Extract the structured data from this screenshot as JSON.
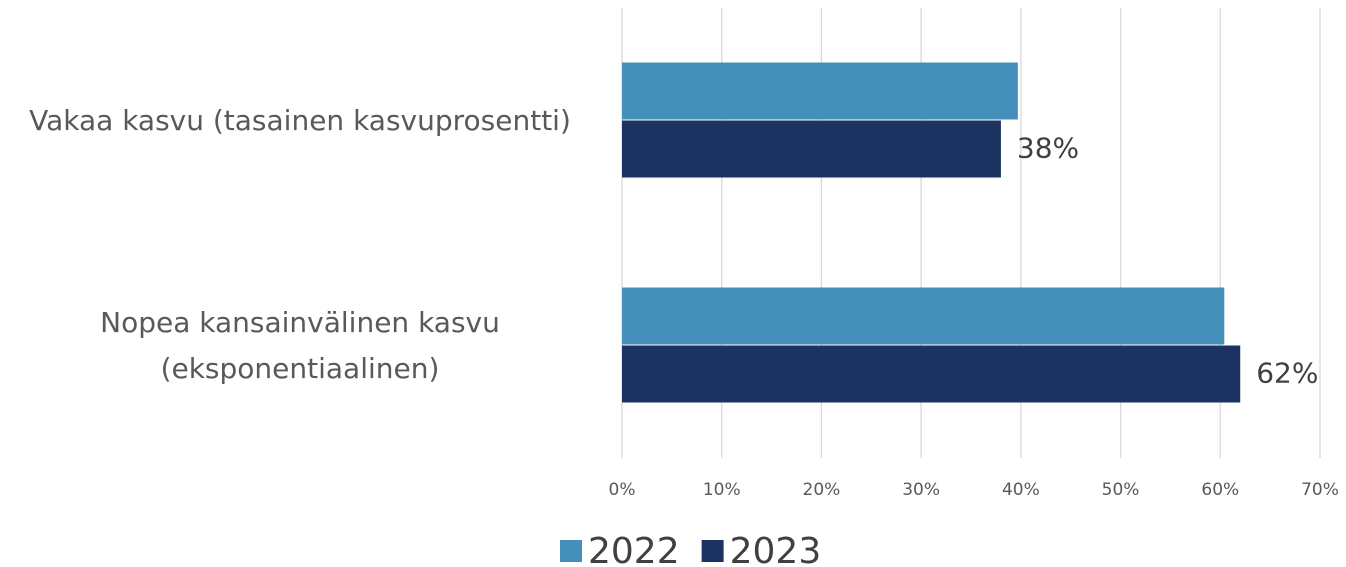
{
  "chart_data": {
    "type": "bar",
    "orientation": "horizontal",
    "categories": [
      "Vakaa kasvu (tasainen kasvuprosentti)",
      "Nopea kansainvälinen kasvu (eksponentiaalinen)"
    ],
    "series": [
      {
        "name": "2022",
        "color": "#4590bb",
        "values": [
          39.7,
          60.4
        ]
      },
      {
        "name": "2023",
        "color": "#1c3260",
        "values": [
          38,
          62
        ],
        "value_labels": [
          "38%",
          "62%"
        ]
      }
    ],
    "xlim": [
      0,
      70
    ],
    "xticks": [
      {
        "value": 0,
        "label": "0%"
      },
      {
        "value": 10,
        "label": "10%"
      },
      {
        "value": 20,
        "label": "20%"
      },
      {
        "value": 30,
        "label": "30%"
      },
      {
        "value": 40,
        "label": "40%"
      },
      {
        "value": 50,
        "label": "50%"
      },
      {
        "value": 60,
        "label": "60%"
      },
      {
        "value": 70,
        "label": "70%"
      }
    ],
    "grid": true,
    "legend": "bottom"
  }
}
